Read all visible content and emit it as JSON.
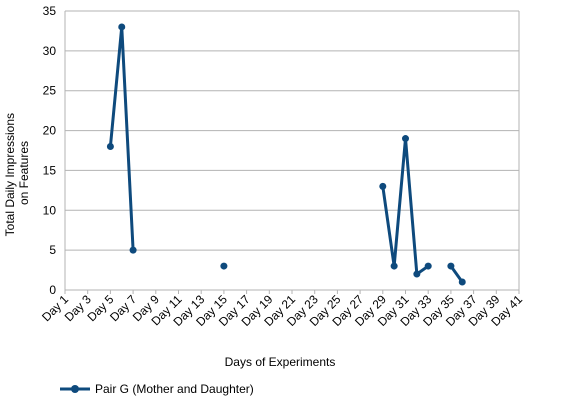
{
  "chart_data": {
    "type": "line",
    "xlabel": "Days of Experiments",
    "ylabel_lines": [
      "Total Daily Impressions",
      "on Features"
    ],
    "ylim": [
      0,
      35
    ],
    "y_ticks": [
      0,
      5,
      10,
      15,
      20,
      25,
      30,
      35
    ],
    "x_ticks": [
      "Day 1",
      "Day 3",
      "Day 5",
      "Day 7",
      "Day 9",
      "Day 11",
      "Day 13",
      "Day 15",
      "Day 17",
      "Day 19",
      "Day 21",
      "Day 23",
      "Day 25",
      "Day 27",
      "Day 29",
      "Day 31",
      "Day 33",
      "Day 35",
      "Day 37",
      "Day 39",
      "Day 41"
    ],
    "x_range": [
      1,
      41
    ],
    "grid": "horizontal",
    "legend_position": "bottom-left",
    "series": [
      {
        "name": "Pair G  (Mother and Daughter)",
        "color": "#0e4a7d",
        "points": [
          {
            "day": 5,
            "value": 18
          },
          {
            "day": 6,
            "value": 33
          },
          {
            "day": 7,
            "value": 5
          },
          {
            "day": 8,
            "value": null
          },
          {
            "day": 15,
            "value": 3
          },
          {
            "day": 16,
            "value": null
          },
          {
            "day": 29,
            "value": 13
          },
          {
            "day": 30,
            "value": 3
          },
          {
            "day": 31,
            "value": 19
          },
          {
            "day": 32,
            "value": 2
          },
          {
            "day": 33,
            "value": 3
          },
          {
            "day": 34,
            "value": null
          },
          {
            "day": 35,
            "value": 3
          },
          {
            "day": 36,
            "value": 1
          }
        ]
      }
    ]
  }
}
